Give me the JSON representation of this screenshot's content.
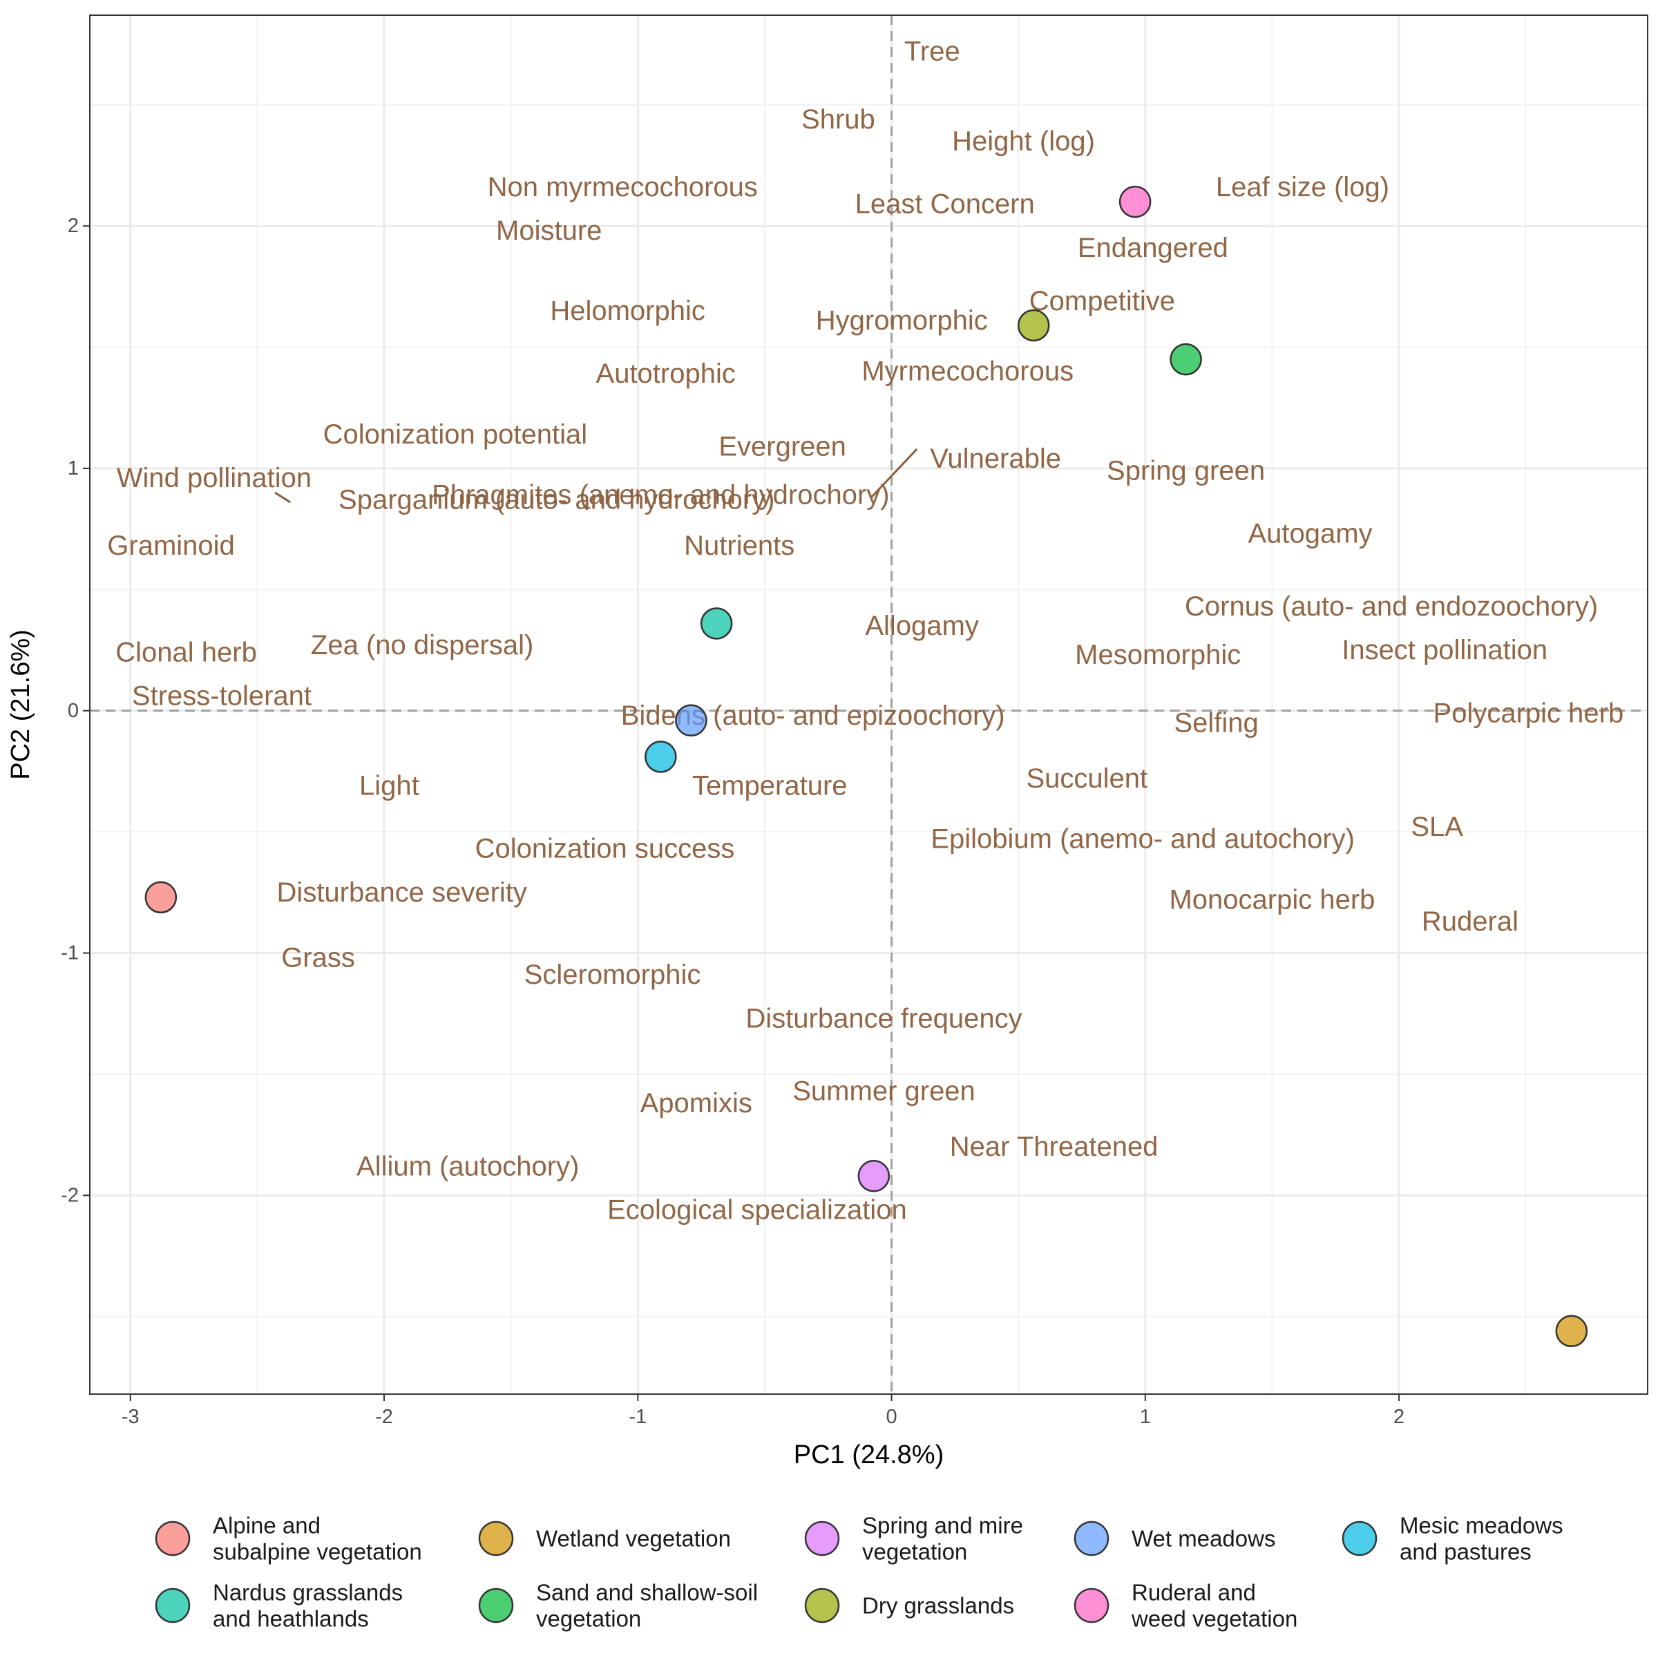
{
  "chart_data": {
    "type": "scatter",
    "xlabel": "PC1 (24.8%)",
    "ylabel": "PC2 (21.6%)",
    "xlim": [
      -3.16,
      2.98
    ],
    "ylim": [
      -2.82,
      2.87
    ],
    "x_ticks": [
      -3,
      -2,
      -1,
      0,
      1,
      2
    ],
    "x_tick_labels": [
      "-3",
      "-2",
      "-1",
      "0",
      "1",
      "2"
    ],
    "y_ticks": [
      -2,
      -1,
      0,
      1,
      2
    ],
    "y_tick_labels": [
      "-2",
      "-1",
      "0",
      "1",
      "2"
    ],
    "grid": true,
    "reference_lines": {
      "x": 0,
      "y": 0,
      "style": "dashed"
    },
    "legend_position": "bottom",
    "label_color": "#8B5E3C",
    "points": [
      {
        "name": "Alpine and subalpine vegetation",
        "legend_lines": [
          "Alpine and",
          "subalpine vegetation"
        ],
        "x": -2.88,
        "y": -0.77,
        "color": "#F8766D"
      },
      {
        "name": "Wetland vegetation",
        "legend_lines": [
          "Wetland vegetation"
        ],
        "x": 2.68,
        "y": -2.56,
        "color": "#D39200"
      },
      {
        "name": "Spring and mire vegetation",
        "legend_lines": [
          "Spring and mire",
          "vegetation"
        ],
        "x": -0.07,
        "y": -1.92,
        "color": "#DB72FB"
      },
      {
        "name": "Wet meadows",
        "legend_lines": [
          "Wet meadows"
        ],
        "x": -0.79,
        "y": -0.04,
        "color": "#619CFF"
      },
      {
        "name": "Mesic meadows and pastures",
        "legend_lines": [
          "Mesic meadows",
          "and pastures"
        ],
        "x": -0.91,
        "y": -0.19,
        "color": "#00B9E3"
      },
      {
        "name": "Nardus grasslands and heathlands",
        "legend_lines": [
          "Nardus grasslands",
          "and heathlands"
        ],
        "x": -0.69,
        "y": 0.36,
        "color": "#00C19F"
      },
      {
        "name": "Sand and shallow-soil vegetation",
        "legend_lines": [
          "Sand and shallow-soil",
          "vegetation"
        ],
        "x": 1.16,
        "y": 1.45,
        "color": "#00BA38"
      },
      {
        "name": "Dry grasslands",
        "legend_lines": [
          "Dry grasslands"
        ],
        "x": 0.56,
        "y": 1.59,
        "color": "#93AA00"
      },
      {
        "name": "Ruderal and weed vegetation",
        "legend_lines": [
          "Ruderal and",
          "weed vegetation"
        ],
        "x": 0.96,
        "y": 2.1,
        "color": "#FF61C3"
      }
    ],
    "trait_labels": [
      {
        "text": "Tree",
        "x": 0.16,
        "y": 2.72
      },
      {
        "text": "Shrub",
        "x": -0.21,
        "y": 2.44
      },
      {
        "text": "Height (log)",
        "x": 0.52,
        "y": 2.35
      },
      {
        "text": "Non myrmecochorous",
        "x": -1.06,
        "y": 2.16
      },
      {
        "text": "Least Concern",
        "x": 0.21,
        "y": 2.09
      },
      {
        "text": "Leaf size (log)",
        "x": 1.62,
        "y": 2.16
      },
      {
        "text": "Moisture",
        "x": -1.35,
        "y": 1.98
      },
      {
        "text": "Endangered",
        "x": 1.03,
        "y": 1.91
      },
      {
        "text": "Helomorphic",
        "x": -1.04,
        "y": 1.65
      },
      {
        "text": "Competitive",
        "x": 0.83,
        "y": 1.69
      },
      {
        "text": "Hygromorphic",
        "x": 0.04,
        "y": 1.61
      },
      {
        "text": "Autotrophic",
        "x": -0.89,
        "y": 1.39
      },
      {
        "text": "Myrmecochorous",
        "x": 0.3,
        "y": 1.4
      },
      {
        "text": "Colonization potential",
        "x": -1.72,
        "y": 1.14
      },
      {
        "text": "Evergreen",
        "x": -0.43,
        "y": 1.09
      },
      {
        "text": "Vulnerable",
        "x": 0.41,
        "y": 1.04
      },
      {
        "text": "Spring green",
        "x": 1.16,
        "y": 0.99
      },
      {
        "text": "Wind pollination",
        "x": -2.67,
        "y": 0.96
      },
      {
        "text": "Phragmites (anemo- and hydrochory)",
        "x": -0.91,
        "y": 0.89
      },
      {
        "text": "Sparganium (auto- and hydrochory)",
        "x": -1.32,
        "y": 0.87
      },
      {
        "text": "Autogamy",
        "x": 1.65,
        "y": 0.73
      },
      {
        "text": "Graminoid",
        "x": -2.84,
        "y": 0.68
      },
      {
        "text": "Nutrients",
        "x": -0.6,
        "y": 0.68
      },
      {
        "text": "Cornus (auto- and endozoochory)",
        "x": 1.97,
        "y": 0.43
      },
      {
        "text": "Allogamy",
        "x": 0.12,
        "y": 0.35
      },
      {
        "text": "Zea (no dispersal)",
        "x": -1.85,
        "y": 0.27
      },
      {
        "text": "Clonal herb",
        "x": -2.78,
        "y": 0.24
      },
      {
        "text": "Insect pollination",
        "x": 2.18,
        "y": 0.25
      },
      {
        "text": "Mesomorphic",
        "x": 1.05,
        "y": 0.23
      },
      {
        "text": "Stress-tolerant",
        "x": -2.64,
        "y": 0.06
      },
      {
        "text": "Polycarpic herb",
        "x": 2.51,
        "y": -0.01
      },
      {
        "text": "Bidens (auto- and epizoochory)",
        "x": -0.31,
        "y": -0.02
      },
      {
        "text": "Selfing",
        "x": 1.28,
        "y": -0.05
      },
      {
        "text": "Light",
        "x": -1.98,
        "y": -0.31
      },
      {
        "text": "Temperature",
        "x": -0.48,
        "y": -0.31
      },
      {
        "text": "Succulent",
        "x": 0.77,
        "y": -0.28
      },
      {
        "text": "SLA",
        "x": 2.15,
        "y": -0.48
      },
      {
        "text": "Epilobium (anemo- and autochory)",
        "x": 0.99,
        "y": -0.53
      },
      {
        "text": "Colonization success",
        "x": -1.13,
        "y": -0.57
      },
      {
        "text": "Disturbance severity",
        "x": -1.93,
        "y": -0.75
      },
      {
        "text": "Monocarpic herb",
        "x": 1.5,
        "y": -0.78
      },
      {
        "text": "Ruderal",
        "x": 2.28,
        "y": -0.87
      },
      {
        "text": "Grass",
        "x": -2.26,
        "y": -1.02
      },
      {
        "text": "Scleromorphic",
        "x": -1.1,
        "y": -1.09
      },
      {
        "text": "Disturbance frequency",
        "x": -0.03,
        "y": -1.27
      },
      {
        "text": "Summer green",
        "x": -0.03,
        "y": -1.57
      },
      {
        "text": "Apomixis",
        "x": -0.77,
        "y": -1.62
      },
      {
        "text": "Near Threatened",
        "x": 0.64,
        "y": -1.8
      },
      {
        "text": "Allium (autochory)",
        "x": -1.67,
        "y": -1.88
      },
      {
        "text": "Ecological specialization",
        "x": -0.53,
        "y": -2.06
      }
    ],
    "segments": [
      {
        "x1": 0.1,
        "y1": 1.08,
        "x2": -0.08,
        "y2": 0.88
      },
      {
        "x1": -2.43,
        "y1": 0.9,
        "x2": -2.37,
        "y2": 0.86
      }
    ]
  }
}
